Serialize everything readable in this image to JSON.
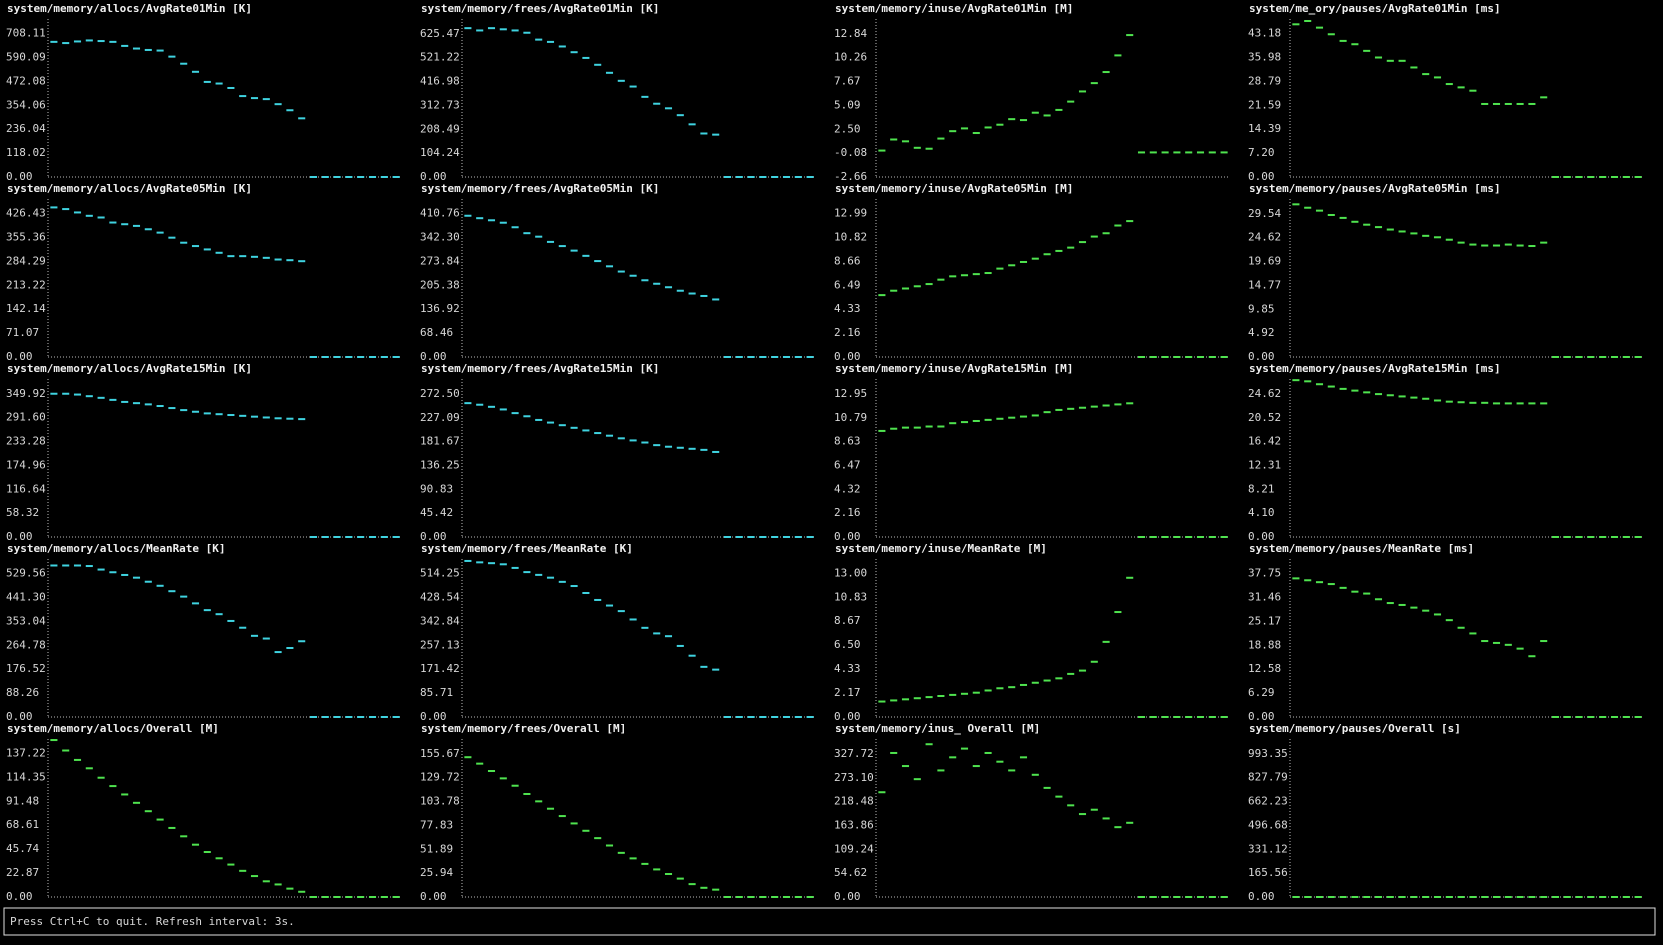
{
  "chart_data": [
    {
      "type": "line",
      "title": "system/memory/allocs/AvgRate01Min [K]",
      "color": "#3fd3e0",
      "ylim": [
        0,
        781
      ],
      "yticks": [
        {
          "value": 0,
          "label": "0.00"
        },
        118.02,
        236.04,
        354.06,
        472.08,
        590.09,
        708.11
      ],
      "values": [
        668,
        662,
        670,
        675,
        672,
        668,
        648,
        635,
        628,
        625,
        595,
        560,
        520,
        470,
        462,
        440,
        400,
        390,
        385,
        360,
        330,
        290,
        0,
        0,
        0,
        0,
        0,
        0,
        0,
        0
      ]
    },
    {
      "type": "line",
      "title": "system/memory/frees/AvgRate01Min [K]",
      "color": "#3fd3e0",
      "ylim": [
        0,
        690
      ],
      "yticks": [
        {
          "value": 0,
          "label": "0.00"
        },
        104.24,
        208.49,
        312.73,
        416.98,
        521.22,
        625.47
      ],
      "values": [
        650,
        640,
        650,
        645,
        640,
        630,
        600,
        590,
        570,
        545,
        520,
        490,
        455,
        420,
        395,
        350,
        320,
        300,
        270,
        230,
        190,
        185,
        0,
        0,
        0,
        0,
        0,
        0,
        0,
        0
      ]
    },
    {
      "type": "line",
      "title": "system/memory/inuse/AvgRate01Min [M]",
      "color": "#4fe34f",
      "ylim": [
        -2.66,
        14.44
      ],
      "yticks": [
        -2.66,
        -0.08,
        {
          "value": 2.5,
          "label": "2.50"
        },
        5.09,
        7.67,
        10.26,
        12.84
      ],
      "values": [
        0.2,
        1.4,
        1.2,
        0.5,
        0.4,
        1.5,
        2.3,
        2.6,
        2.1,
        2.7,
        3.0,
        3.6,
        3.5,
        4.3,
        4.0,
        4.6,
        5.5,
        6.6,
        7.5,
        8.7,
        10.5,
        12.7,
        0,
        0,
        0,
        0,
        0,
        0,
        0,
        0
      ]
    },
    {
      "type": "line",
      "title": "system/me_ory/pauses/AvgRate01Min [ms]",
      "color": "#4fe34f",
      "ylim": [
        0,
        47.6
      ],
      "yticks": [
        {
          "value": 0,
          "label": "0.00"
        },
        {
          "value": 7.2,
          "label": "7.20"
        },
        14.39,
        21.59,
        28.79,
        35.98,
        43.18
      ],
      "values": [
        46,
        47,
        45,
        43,
        41,
        40,
        38,
        36,
        35,
        35,
        33,
        31,
        30,
        28,
        27,
        26,
        22,
        22,
        22,
        22,
        22,
        24,
        0,
        0,
        0,
        0,
        0,
        0,
        0,
        0
      ]
    },
    {
      "type": "line",
      "title": "system/memory/allocs/AvgRate05Min [K]",
      "color": "#3fd3e0",
      "ylim": [
        0,
        470
      ],
      "yticks": [
        {
          "value": 0,
          "label": "0.00"
        },
        71.07,
        142.14,
        213.22,
        284.29,
        355.36,
        426.43
      ],
      "values": [
        445,
        440,
        430,
        420,
        415,
        400,
        395,
        390,
        380,
        370,
        355,
        340,
        330,
        320,
        310,
        300,
        300,
        298,
        295,
        290,
        288,
        285,
        0,
        0,
        0,
        0,
        0,
        0,
        0,
        0
      ]
    },
    {
      "type": "line",
      "title": "system/memory/frees/AvgRate05Min [K]",
      "color": "#3fd3e0",
      "ylim": [
        0,
        453
      ],
      "yticks": [
        {
          "value": 0,
          "label": "0.00"
        },
        68.46,
        136.92,
        205.38,
        273.84,
        {
          "value": 342.3,
          "label": "342.30"
        },
        410.76
      ],
      "values": [
        405,
        398,
        392,
        385,
        372,
        355,
        345,
        330,
        318,
        305,
        290,
        275,
        260,
        245,
        233,
        220,
        210,
        200,
        190,
        182,
        175,
        165,
        0,
        0,
        0,
        0,
        0,
        0,
        0,
        0
      ]
    },
    {
      "type": "line",
      "title": "system/memory/inuse/AvgRate05Min [M]",
      "color": "#4fe34f",
      "ylim": [
        0,
        14.3
      ],
      "yticks": [
        {
          "value": 0,
          "label": "0.00"
        },
        2.16,
        4.33,
        6.49,
        8.66,
        10.82,
        12.99
      ],
      "values": [
        5.6,
        6.0,
        6.2,
        6.4,
        6.6,
        7.0,
        7.3,
        7.4,
        7.5,
        7.6,
        8.0,
        8.3,
        8.6,
        8.9,
        9.3,
        9.6,
        9.9,
        10.4,
        10.9,
        11.2,
        11.9,
        12.3,
        0,
        0,
        0,
        0,
        0,
        0,
        0,
        0
      ]
    },
    {
      "type": "line",
      "title": "system/memory/pauses/AvgRate05Min [ms]",
      "color": "#4fe34f",
      "ylim": [
        0,
        32.6
      ],
      "yticks": [
        {
          "value": 0,
          "label": "0.00"
        },
        4.92,
        9.85,
        14.77,
        19.69,
        24.62,
        29.54
      ],
      "values": [
        31.5,
        30.8,
        30.2,
        29.3,
        28.7,
        27.9,
        27.3,
        26.8,
        26.3,
        25.9,
        25.5,
        25.0,
        24.7,
        24.2,
        23.6,
        23.2,
        23.0,
        23.0,
        23.2,
        23.0,
        22.9,
        23.6,
        0,
        0,
        0,
        0,
        0,
        0,
        0,
        0
      ]
    },
    {
      "type": "line",
      "title": "system/memory/allocs/AvgRate15Min [K]",
      "color": "#3fd3e0",
      "ylim": [
        0,
        386
      ],
      "yticks": [
        {
          "value": 0,
          "label": "0.00"
        },
        58.32,
        116.64,
        174.96,
        233.28,
        {
          "value": 291.6,
          "label": "291.60"
        },
        349.92
      ],
      "values": [
        350,
        350,
        348,
        344,
        340,
        335,
        330,
        327,
        324,
        320,
        315,
        310,
        306,
        302,
        300,
        298,
        296,
        294,
        292,
        290,
        289,
        288,
        0,
        0,
        0,
        0,
        0,
        0,
        0,
        0
      ]
    },
    {
      "type": "line",
      "title": "system/memory/frees/AvgRate15Min [K]",
      "color": "#3fd3e0",
      "ylim": [
        0,
        301
      ],
      "yticks": [
        {
          "value": 0,
          "label": "0.00"
        },
        45.42,
        90.83,
        136.25,
        181.67,
        227.09,
        {
          "value": 272.5,
          "label": "272.50"
        }
      ],
      "values": [
        255,
        252,
        248,
        243,
        236,
        230,
        223,
        218,
        213,
        208,
        203,
        198,
        193,
        188,
        184,
        180,
        175,
        172,
        170,
        168,
        166,
        162,
        0,
        0,
        0,
        0,
        0,
        0,
        0,
        0
      ]
    },
    {
      "type": "line",
      "title": "system/memory/inuse/AvgRate15Min [M]",
      "color": "#4fe34f",
      "ylim": [
        0,
        14.3
      ],
      "yticks": [
        {
          "value": 0,
          "label": "0.00"
        },
        2.16,
        4.32,
        6.47,
        8.63,
        10.79,
        12.95
      ],
      "values": [
        9.6,
        9.8,
        9.9,
        9.9,
        10.0,
        10.0,
        10.3,
        10.4,
        10.5,
        10.6,
        10.7,
        10.8,
        10.9,
        11.0,
        11.3,
        11.5,
        11.6,
        11.7,
        11.8,
        11.9,
        12.0,
        12.1,
        0,
        0,
        0,
        0,
        0,
        0,
        0,
        0
      ]
    },
    {
      "type": "line",
      "title": "system/memory/pauses/AvgRate15Min [ms]",
      "color": "#4fe34f",
      "ylim": [
        0,
        27.2
      ],
      "yticks": [
        {
          "value": 0,
          "label": "0.00"
        },
        {
          "value": 4.1,
          "label": "4.10"
        },
        8.21,
        12.31,
        16.42,
        20.52,
        24.62
      ],
      "values": [
        27.0,
        26.8,
        26.3,
        25.9,
        25.5,
        25.2,
        24.9,
        24.6,
        24.4,
        24.2,
        24.0,
        23.8,
        23.5,
        23.3,
        23.2,
        23.1,
        23.1,
        23.0,
        23.0,
        23.0,
        23.0,
        23.0,
        0,
        0,
        0,
        0,
        0,
        0,
        0,
        0
      ]
    },
    {
      "type": "line",
      "title": "system/memory/allocs/MeanRate [K]",
      "color": "#3fd3e0",
      "ylim": [
        0,
        584
      ],
      "yticks": [
        {
          "value": 0,
          "label": "0.00"
        },
        88.26,
        176.52,
        264.78,
        353.04,
        {
          "value": 441.3,
          "label": "441.30"
        },
        529.56
      ],
      "values": [
        560,
        560,
        560,
        558,
        545,
        535,
        525,
        515,
        500,
        485,
        465,
        445,
        420,
        395,
        380,
        355,
        330,
        300,
        290,
        240,
        255,
        280,
        0,
        0,
        0,
        0,
        0,
        0,
        0,
        0
      ]
    },
    {
      "type": "line",
      "title": "system/memory/frees/MeanRate [K]",
      "color": "#3fd3e0",
      "ylim": [
        0,
        567
      ],
      "yticks": [
        {
          "value": 0,
          "label": "0.00"
        },
        85.71,
        171.42,
        257.13,
        342.84,
        428.54,
        514.25
      ],
      "values": [
        560,
        555,
        552,
        548,
        535,
        520,
        510,
        500,
        485,
        470,
        445,
        420,
        400,
        380,
        350,
        320,
        300,
        290,
        255,
        220,
        180,
        170,
        0,
        0,
        0,
        0,
        0,
        0,
        0,
        0
      ]
    },
    {
      "type": "line",
      "title": "system/memory/inuse/MeanRate [M]",
      "color": "#4fe34f",
      "ylim": [
        0,
        14.3
      ],
      "yticks": [
        {
          "value": 0,
          "label": "0.00"
        },
        2.17,
        4.33,
        {
          "value": 6.5,
          "label": "6.50"
        },
        8.67,
        10.83,
        {
          "value": 13,
          "label": "13.00"
        }
      ],
      "values": [
        1.4,
        1.5,
        1.6,
        1.7,
        1.8,
        1.9,
        2.0,
        2.1,
        2.2,
        2.4,
        2.6,
        2.7,
        2.9,
        3.1,
        3.3,
        3.5,
        3.9,
        4.2,
        5.0,
        6.8,
        9.5,
        12.6,
        0,
        0,
        0,
        0,
        0,
        0,
        0,
        0
      ]
    },
    {
      "type": "line",
      "title": "system/memory/pauses/MeanRate [ms]",
      "color": "#4fe34f",
      "ylim": [
        0,
        41.6
      ],
      "yticks": [
        {
          "value": 0,
          "label": "0.00"
        },
        6.29,
        12.58,
        18.88,
        25.17,
        31.46,
        37.75
      ],
      "values": [
        36.5,
        36.0,
        35.5,
        35.0,
        34.0,
        33.0,
        32.5,
        31.0,
        30.0,
        29.5,
        28.8,
        28.0,
        27.0,
        25.5,
        23.5,
        22.0,
        20.0,
        19.5,
        19.0,
        18.0,
        16.0,
        20.0,
        0,
        0,
        0,
        0,
        0,
        0,
        0,
        0
      ]
    },
    {
      "type": "line",
      "title": "system/memory/allocs/Overall [M]",
      "color": "#4fe34f",
      "ylim": [
        0,
        151
      ],
      "yticks": [
        {
          "value": 0,
          "label": "0.00"
        },
        22.87,
        45.74,
        68.61,
        91.48,
        114.35,
        137.22
      ],
      "values": [
        150,
        140,
        131,
        123,
        114,
        106,
        98,
        90,
        82,
        74,
        66,
        58,
        50,
        43,
        37,
        31,
        25,
        20,
        15,
        12,
        8,
        5,
        0,
        0,
        0,
        0,
        0,
        0,
        0,
        0
      ]
    },
    {
      "type": "line",
      "title": "system/memory/frees/Overall [M]",
      "color": "#4fe34f",
      "ylim": [
        0,
        171.8
      ],
      "yticks": [
        {
          "value": 0,
          "label": "0.00"
        },
        25.94,
        51.89,
        77.83,
        103.78,
        129.72,
        155.67
      ],
      "values": [
        152,
        145,
        137,
        129,
        121,
        112,
        104,
        96,
        88,
        80,
        72,
        64,
        56,
        48,
        42,
        36,
        30,
        25,
        20,
        14,
        10,
        8,
        0,
        0,
        0,
        0,
        0,
        0,
        0,
        0
      ]
    },
    {
      "type": "line",
      "title": "system/memory/inus_ Overall [M]",
      "color": "#4fe34f",
      "ylim": [
        0,
        362
      ],
      "yticks": [
        {
          "value": 0,
          "label": "0.00"
        },
        54.62,
        109.24,
        163.86,
        218.48,
        {
          "value": 273.1,
          "label": "273.10"
        },
        327.72
      ],
      "values": [
        240,
        330,
        300,
        270,
        350,
        290,
        320,
        340,
        300,
        330,
        310,
        290,
        320,
        280,
        250,
        230,
        210,
        190,
        200,
        180,
        160,
        170,
        0,
        0,
        0,
        0,
        0,
        0,
        0,
        0
      ]
    },
    {
      "type": "line",
      "title": "system/memory/pauses/Overall [s]",
      "color": "#4fe34f",
      "ylim": [
        0,
        1096
      ],
      "yticks": [
        {
          "value": 0,
          "label": "0.00"
        },
        165.56,
        331.12,
        496.68,
        662.23,
        827.79,
        993.35
      ],
      "values": [
        0,
        0,
        0,
        0,
        0,
        0,
        0,
        0,
        0,
        0,
        0,
        0,
        0,
        0,
        0,
        0,
        0,
        0,
        0,
        0,
        0,
        0,
        0,
        0,
        0,
        0,
        0,
        0,
        0,
        0
      ]
    }
  ],
  "status_bar": {
    "text": "Press Ctrl+C to quit. Refresh interval: 3s."
  }
}
